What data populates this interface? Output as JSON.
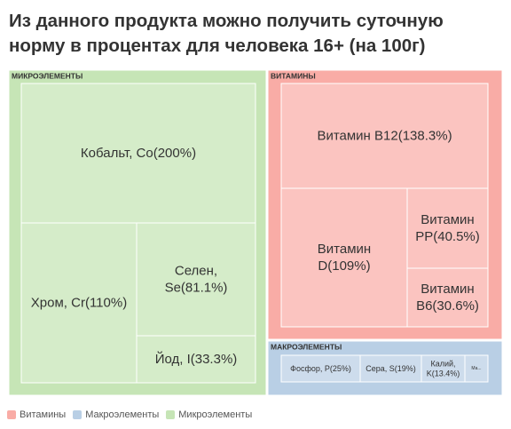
{
  "title_lines": [
    "Из данного продукта можно получить суточную",
    "норму в процентах для человека 16+ (на 100г)"
  ],
  "colors": {
    "vitamins": "#f9aca6",
    "vitamins_leaf": "#fbc4c0",
    "macro": "#b9cfe5",
    "macro_leaf": "#cddcec",
    "micro": "#c6e5b6",
    "micro_leaf": "#d5ecc9",
    "text": "#333333",
    "legend_text": "#555555"
  },
  "legend": [
    {
      "label": "Витамины",
      "color": "#f9aca6"
    },
    {
      "label": "Макроэлементы",
      "color": "#b9cfe5"
    },
    {
      "label": "Микроэлементы",
      "color": "#c6e5b6"
    }
  ],
  "chart_data": {
    "type": "treemap",
    "title": "Из данного продукта можно получить суточную норму в процентах для человека 16+ (на 100г)",
    "groups": [
      {
        "name": "МИКРОЭЛЕМЕНТЫ",
        "legend": "Микроэлементы",
        "items": [
          {
            "label": "Кобальт, Co(200%)",
            "lines": [
              "Кобальт, Co(200%)"
            ],
            "value": 200
          },
          {
            "label": "Хром, Cr(110%)",
            "lines": [
              "Хром, Cr(110%)"
            ],
            "value": 110
          },
          {
            "label": "Селен, Se(81.1%)",
            "lines": [
              "Селен,",
              "Se(81.1%)"
            ],
            "value": 81.1
          },
          {
            "label": "Йод, I(33.3%)",
            "lines": [
              "Йод, I(33.3%)"
            ],
            "value": 33.3
          }
        ]
      },
      {
        "name": "ВИТАМИНЫ",
        "legend": "Витамины",
        "items": [
          {
            "label": "Витамин B12(138.3%)",
            "lines": [
              "Витамин B12(138.3%)"
            ],
            "value": 138.3
          },
          {
            "label": "Витамин D(109%)",
            "lines": [
              "Витамин",
              "D(109%)"
            ],
            "value": 109
          },
          {
            "label": "Витамин PP(40.5%)",
            "lines": [
              "Витамин",
              "PP(40.5%)"
            ],
            "value": 40.5
          },
          {
            "label": "Витамин B6(30.6%)",
            "lines": [
              "Витамин",
              "B6(30.6%)"
            ],
            "value": 30.6
          }
        ]
      },
      {
        "name": "МАКРОЭЛЕМЕНТЫ",
        "legend": "Макроэлементы",
        "items": [
          {
            "label": "Фосфор, P(25%)",
            "lines": [
              "Фосфор, P(25%)"
            ],
            "value": 25
          },
          {
            "label": "Сера, S(19%)",
            "lines": [
              "Сера, S(19%)"
            ],
            "value": 19
          },
          {
            "label": "Калий, K(13.4%)",
            "lines": [
              "Калий,",
              "K(13.4%)"
            ],
            "value": 13.4
          },
          {
            "label": "Ма...",
            "lines": [
              "Ма..."
            ],
            "value": null
          }
        ]
      }
    ]
  }
}
